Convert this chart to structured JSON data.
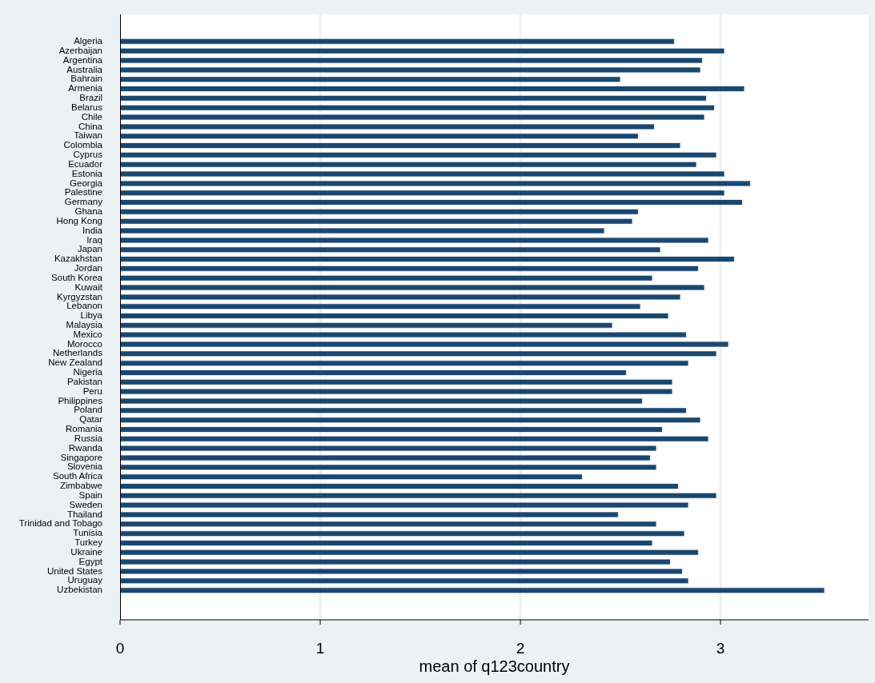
{
  "chart_data": {
    "type": "bar",
    "orientation": "horizontal",
    "xlabel": "mean of q123country",
    "categories": [
      "Algeria",
      "Azerbaijan",
      "Argentina",
      "Australia",
      "Bahrain",
      "Armenia",
      "Brazil",
      "Belarus",
      "Chile",
      "China",
      "Taiwan",
      "Colombia",
      "Cyprus",
      "Ecuador",
      "Estonia",
      "Georgia",
      "Palestine",
      "Germany",
      "Ghana",
      "Hong Kong",
      "India",
      "Iraq",
      "Japan",
      "Kazakhstan",
      "Jordan",
      "South Korea",
      "Kuwait",
      "Kyrgyzstan",
      "Lebanon",
      "Libya",
      "Malaysia",
      "Mexico",
      "Morocco",
      "Netherlands",
      "New Zealand",
      "Nigeria",
      "Pakistan",
      "Peru",
      "Philippines",
      "Poland",
      "Qatar",
      "Romania",
      "Russia",
      "Rwanda",
      "Singapore",
      "Slovenia",
      "South Africa",
      "Zimbabwe",
      "Spain",
      "Sweden",
      "Thailand",
      "Trinidad and Tobago",
      "Tunisia",
      "Turkey",
      "Ukraine",
      "Egypt",
      "United States",
      "Uruguay",
      "Uzbekistan"
    ],
    "values": [
      2.77,
      3.02,
      2.91,
      2.9,
      2.5,
      3.12,
      2.93,
      2.97,
      2.92,
      2.67,
      2.59,
      2.8,
      2.98,
      2.88,
      3.02,
      3.15,
      3.02,
      3.11,
      2.59,
      2.56,
      2.42,
      2.94,
      2.7,
      3.07,
      2.89,
      2.66,
      2.92,
      2.8,
      2.6,
      2.74,
      2.46,
      2.83,
      3.04,
      2.98,
      2.84,
      2.53,
      2.76,
      2.76,
      2.61,
      2.83,
      2.9,
      2.71,
      2.94,
      2.68,
      2.65,
      2.68,
      2.31,
      2.79,
      2.98,
      2.84,
      2.49,
      2.68,
      2.82,
      2.66,
      2.89,
      2.75,
      2.81,
      2.84,
      3.52
    ],
    "color": "#1a476f",
    "xlim": [
      0,
      3.74
    ],
    "xticks": [
      0,
      1,
      2,
      3
    ],
    "grid": "x",
    "legend": false
  }
}
